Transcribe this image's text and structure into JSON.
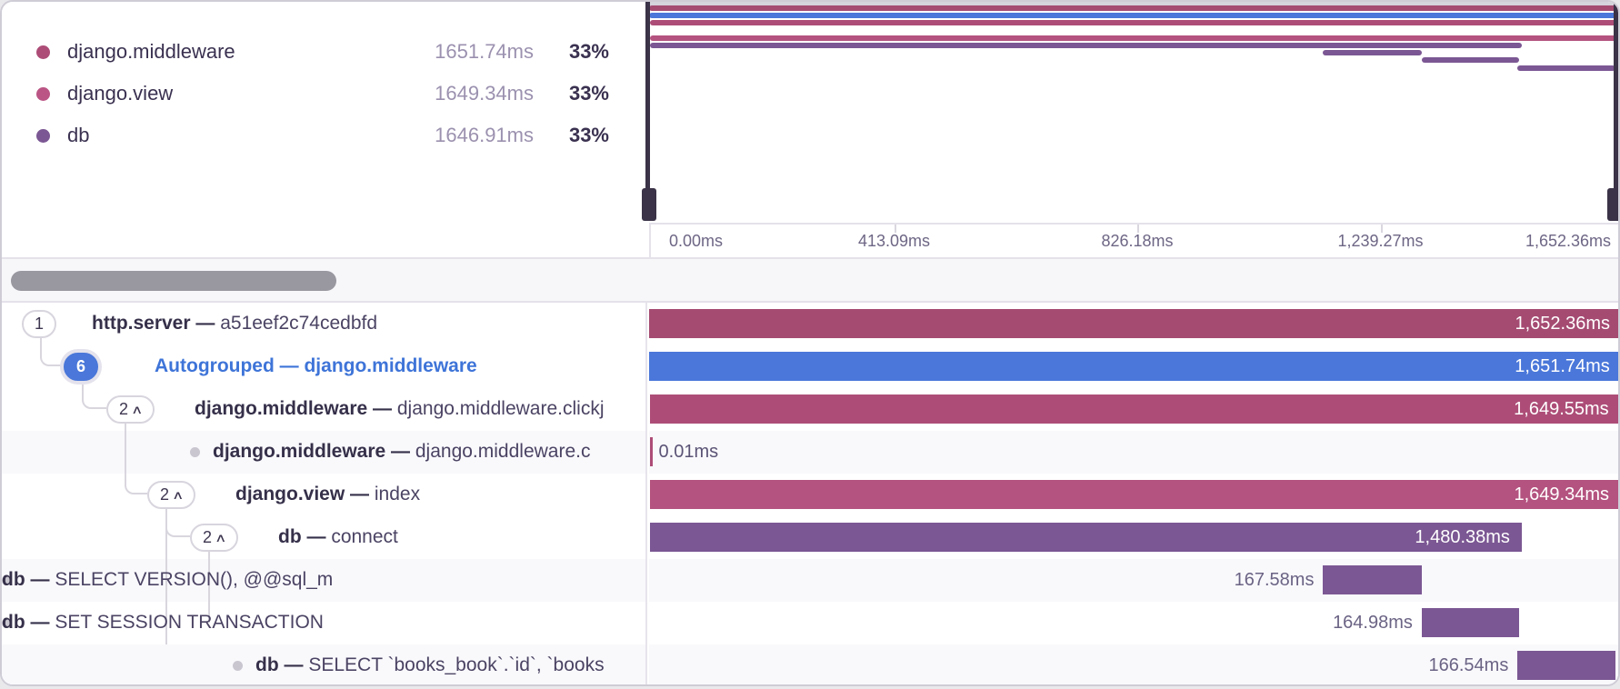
{
  "colors": {
    "maroon": "#a54b72",
    "middleware": "#ad4d77",
    "view": "#b4537f",
    "db": "#7b5793",
    "blue": "#4a77d9",
    "legend_middleware_dot": "#ad4d77",
    "legend_view_dot": "#bb5585",
    "legend_db_dot": "#7b5793"
  },
  "legend": {
    "items": [
      {
        "label": "django.middleware",
        "value": "1651.74ms",
        "percent": "33%",
        "color": "#ad4d77"
      },
      {
        "label": "django.view",
        "value": "1649.34ms",
        "percent": "33%",
        "color": "#bb5585"
      },
      {
        "label": "db",
        "value": "1646.91ms",
        "percent": "33%",
        "color": "#7b5793"
      }
    ]
  },
  "minimap": {
    "axis_labels": [
      "0.00ms",
      "413.09ms",
      "826.18ms",
      "1,239.27ms",
      "1,652.36ms"
    ]
  },
  "trace": {
    "total_ms": 1652.36,
    "rows": [
      {
        "badge": "1",
        "chevron": false,
        "leaf": false,
        "blue": false,
        "level": 0,
        "parent": null,
        "name": "http.server",
        "sep": "—",
        "desc": "a51eef2c74cedbfd",
        "color": "maroon",
        "start_ms": 0,
        "duration_ms": 1652.36,
        "duration_label": "1,652.36ms",
        "label_inside": true,
        "shade": false
      },
      {
        "badge": "6",
        "chevron": false,
        "leaf": false,
        "blue": true,
        "level": 1,
        "parent": 1,
        "name": "Autogrouped",
        "sep": "—",
        "desc": "django.middleware",
        "color": "blue",
        "start_ms": 0.3,
        "duration_ms": 1651.74,
        "duration_label": "1,651.74ms",
        "label_inside": true,
        "shade": false
      },
      {
        "badge": "2",
        "chevron": true,
        "leaf": false,
        "blue": false,
        "level": 2,
        "parent": 2,
        "name": "django.middleware",
        "sep": "—",
        "desc": "django.middleware.clickj",
        "color": "middleware",
        "start_ms": 0.8,
        "duration_ms": 1649.55,
        "duration_label": "1,649.55ms",
        "label_inside": true,
        "shade": false
      },
      {
        "badge": null,
        "chevron": false,
        "leaf": true,
        "blue": false,
        "level": 3,
        "parent": 3,
        "name": "django.middleware",
        "sep": "—",
        "desc": "django.middleware.c",
        "color": "middleware",
        "start_ms": 0.8,
        "duration_ms": 0.01,
        "duration_label": "0.01ms",
        "label_inside": false,
        "shade": true
      },
      {
        "badge": "2",
        "chevron": true,
        "leaf": false,
        "blue": false,
        "level": 3,
        "parent": 3,
        "name": "django.view",
        "sep": "—",
        "desc": "index",
        "color": "view",
        "start_ms": 1.5,
        "duration_ms": 1649.34,
        "duration_label": "1,649.34ms",
        "label_inside": true,
        "shade": false
      },
      {
        "badge": "2",
        "chevron": true,
        "leaf": false,
        "blue": false,
        "level": 4,
        "parent": 5,
        "name": "db",
        "sep": "—",
        "desc": "connect",
        "color": "db",
        "start_ms": 2.0,
        "duration_ms": 1480.38,
        "duration_label": "1,480.38ms",
        "label_inside": true,
        "shade": false
      },
      {
        "badge": null,
        "chevron": false,
        "leaf": true,
        "blue": false,
        "level": 5,
        "parent": 6,
        "name": "db",
        "sep": "—",
        "desc": "SELECT VERSION(), @@sql_m",
        "color": "db",
        "start_ms": 1145.0,
        "duration_ms": 167.58,
        "duration_label": "167.58ms",
        "label_inside": false,
        "shade": true
      },
      {
        "badge": null,
        "chevron": false,
        "leaf": true,
        "blue": false,
        "level": 5,
        "parent": 6,
        "name": "db",
        "sep": "—",
        "desc": "SET SESSION TRANSACTION",
        "color": "db",
        "start_ms": 1312.5,
        "duration_ms": 164.98,
        "duration_label": "164.98ms",
        "label_inside": false,
        "shade": false
      },
      {
        "badge": null,
        "chevron": false,
        "leaf": true,
        "blue": false,
        "level": 4,
        "parent": 5,
        "name": "db",
        "sep": "—",
        "desc": "SELECT `books_book`.`id`, `books",
        "color": "db",
        "start_ms": 1475.3,
        "duration_ms": 166.54,
        "duration_label": "166.54ms",
        "label_inside": false,
        "shade": true
      }
    ]
  }
}
